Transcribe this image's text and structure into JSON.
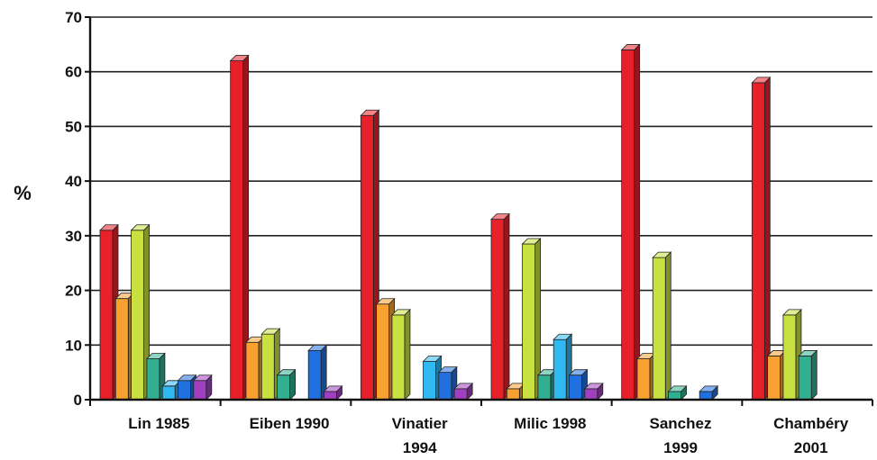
{
  "chart_data": {
    "type": "bar",
    "ylabel": "%",
    "xlabel": "",
    "title": "",
    "ylim": [
      0,
      70
    ],
    "yticks": [
      0,
      10,
      20,
      30,
      40,
      50,
      60,
      70
    ],
    "grid": true,
    "legend": "none",
    "categories": [
      [
        "Lin 1985"
      ],
      [
        "Eiben 1990"
      ],
      [
        "Vinatier",
        "1994"
      ],
      [
        "Milic 1998"
      ],
      [
        "Sanchez",
        "1999"
      ],
      [
        "Chambéry",
        "2001"
      ]
    ],
    "colors": [
      "#e8202a",
      "#f8a030",
      "#c8e040",
      "#30b090",
      "#30b8f0",
      "#2070e0",
      "#a040c0"
    ],
    "series": [
      {
        "values": [
          31,
          62,
          52,
          33,
          64,
          58
        ]
      },
      {
        "values": [
          18.5,
          10.5,
          17.5,
          2,
          7.5,
          8
        ]
      },
      {
        "values": [
          31,
          12,
          15.5,
          28.5,
          26,
          15.5
        ]
      },
      {
        "values": [
          7.5,
          4.5,
          0,
          4.5,
          1.5,
          8
        ]
      },
      {
        "values": [
          2.5,
          0,
          7,
          11,
          0,
          0
        ]
      },
      {
        "values": [
          3.5,
          9,
          5,
          4.5,
          1.5,
          0
        ]
      },
      {
        "values": [
          3.5,
          1.5,
          2,
          2,
          0,
          0
        ]
      }
    ]
  }
}
